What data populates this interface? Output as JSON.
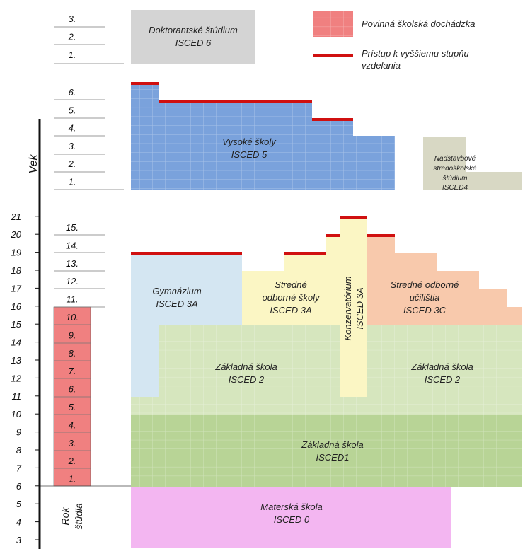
{
  "age_axis": {
    "title": "Vek",
    "ticks": [
      "3",
      "4",
      "5",
      "6",
      "7",
      "8",
      "9",
      "10",
      "11",
      "12",
      "13",
      "14",
      "15",
      "16",
      "17",
      "18",
      "19",
      "20",
      "21"
    ]
  },
  "study_axis": {
    "title_line1": "Rok",
    "title_line2": "štúdia",
    "tertiary_years": [
      "6.",
      "5.",
      "4.",
      "3.",
      "2.",
      "1."
    ],
    "doctoral_years": [
      "3.",
      "2.",
      "1."
    ],
    "school_years": [
      "15.",
      "14.",
      "13.",
      "12.",
      "11.",
      "10.",
      "9.",
      "8.",
      "7.",
      "6.",
      "5.",
      "4.",
      "3.",
      "2.",
      "1."
    ]
  },
  "legend": {
    "compulsory": "Povinná školská dochádzka",
    "access_line1": "Prístup k vyššiemu stupňu",
    "access_line2": "vzdelania"
  },
  "blocks": {
    "doktorantske": {
      "line1": "Doktorantské štúdium",
      "line2": "ISCED 6"
    },
    "vysoke": {
      "line1": "Vysoké školy",
      "line2": "ISCED 5"
    },
    "nadstavbove": {
      "line1": "Nadstavbové",
      "line2": "stredoškolské",
      "line3": "štúdium",
      "line4": "ISCED4"
    },
    "gymnazium": {
      "line1": "Gymnázium",
      "line2": "ISCED 3A"
    },
    "stredne_odborne_skoly": {
      "line1": "Stredné",
      "line2": "odborné školy",
      "line3": "ISCED 3A"
    },
    "konzervatorium": {
      "line1": "Konzervatórium",
      "line2": "ISCED 3A"
    },
    "stredne_odborne_ucilista": {
      "line1": "Stredné odborné",
      "line2": "učilištia",
      "line3": "ISCED 3C"
    },
    "zakladna_2_left": {
      "line1": "Základná škola",
      "line2": "ISCED 2"
    },
    "zakladna_2_right": {
      "line1": "Základná škola",
      "line2": "ISCED 2"
    },
    "zakladna_1": {
      "line1": "Základná škola",
      "line2": "ISCED1"
    },
    "materska": {
      "line1": "Materská škola",
      "line2": "ISCED 0"
    }
  },
  "colors": {
    "compulsory": "#f08080",
    "access": "#d01010",
    "doctoral": "#d4d4d4",
    "tertiary": "#7aa2dc",
    "postsecondary": "#d8d8c4",
    "gymnazium": "#d4e6f2",
    "secondary_3a": "#fbf6c4",
    "secondary_3c": "#f8c9ac",
    "lower_secondary": "#d6e6be",
    "primary": "#b8d496",
    "preprimary": "#f3b6f1"
  }
}
